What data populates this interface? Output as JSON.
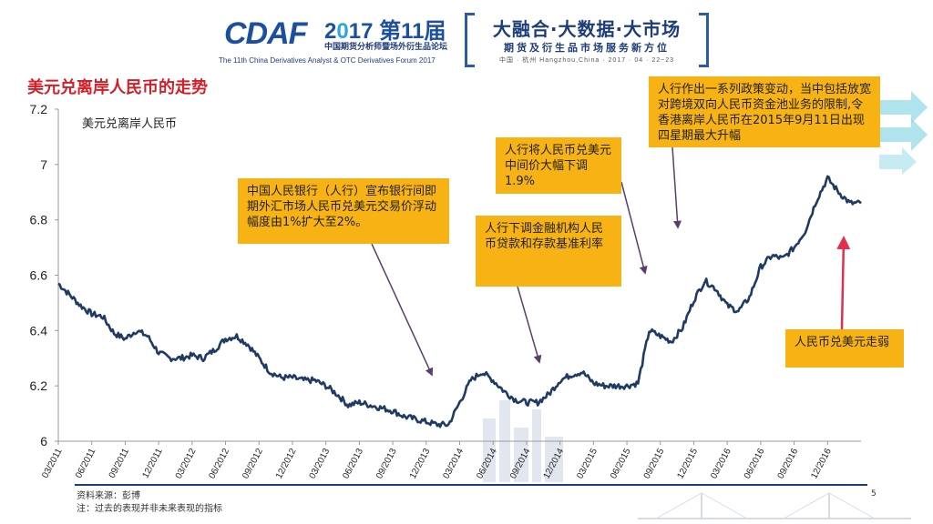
{
  "header": {
    "logo_text": "CDAF",
    "year_prefix": "2",
    "year_mid": "0",
    "year_suffix": "17 第11届",
    "logo_subtitle": "中国期货分析师暨场外衍生品论坛",
    "forum_name_en": "The 11th China Derivatives Analyst & OTC Derivatives Forum 2017",
    "slogan_main": "大融合·大数据·大市场",
    "slogan_sub": "期货及衍生品市场服务新方位",
    "slogan_location": "中国 · 杭州 Hangzhou,China · 2017 · 04 · 22~23"
  },
  "slide_title": "美元兑离岸人民币的走势",
  "callouts": [
    {
      "name": "callout-pboc-band",
      "text": "中国人民银行（人行）宣布银行间即期外汇市场人民币兑美元交易价浮动幅度由1%扩大至2%。"
    },
    {
      "name": "callout-rate-cut",
      "text": "人行下调金融机构人民币贷款和存款基准利率"
    },
    {
      "name": "callout-devaluation",
      "text": "人行将人民币兑美元中间价大幅下调1.9%"
    },
    {
      "name": "callout-policy-changes",
      "text": "人行作出一系列政策变动，当中包括放宽对跨境双向人民币资金池业务的限制,令香港离岸人民币在2015年9月11日出现四星期最大升幅"
    },
    {
      "name": "callout-rmb-weak",
      "text": "人民币兑美元走弱"
    }
  ],
  "footer": {
    "source": "资料来源：彭博",
    "note": "注：过去的表现并非未来表现的指标",
    "page": "5"
  },
  "colors": {
    "line": "#1f3b63",
    "title": "#d21f27",
    "callout": "#f7b213",
    "callout_arrow": "#5a3e6b",
    "weak_arrow": "#e0304e",
    "brand_blue": "#1d3d7a"
  },
  "chart_data": {
    "type": "line",
    "title": "",
    "xlabel": "",
    "ylabel": "",
    "ylim": [
      6.0,
      7.2
    ],
    "yticks": [
      "7.2",
      "7",
      "6.8",
      "6.6",
      "6.4",
      "6.2",
      "6"
    ],
    "ytick_values": [
      7.2,
      7.0,
      6.8,
      6.6,
      6.4,
      6.2,
      6.0
    ],
    "xticks": [
      "03/2011",
      "06/2011",
      "09/2011",
      "12/2011",
      "03/2012",
      "06/2012",
      "09/2012",
      "12/2012",
      "03/2013",
      "06/2013",
      "09/2013",
      "12/2013",
      "03/2014",
      "06/2014",
      "09/2014",
      "12/2014",
      "03/2015",
      "06/2015",
      "09/2015",
      "12/2015",
      "03/2016",
      "06/2016",
      "09/2016",
      "12/2016"
    ],
    "grid": false,
    "legend_position": "top-left",
    "series": [
      {
        "name": "美元兑离岸人民币",
        "x": [
          "2011-03",
          "2011-04",
          "2011-05",
          "2011-06",
          "2011-07",
          "2011-08",
          "2011-09",
          "2011-10",
          "2011-11",
          "2011-12",
          "2012-01",
          "2012-02",
          "2012-03",
          "2012-04",
          "2012-05",
          "2012-06",
          "2012-07",
          "2012-08",
          "2012-09",
          "2012-10",
          "2012-11",
          "2012-12",
          "2013-01",
          "2013-02",
          "2013-03",
          "2013-04",
          "2013-05",
          "2013-06",
          "2013-07",
          "2013-08",
          "2013-09",
          "2013-10",
          "2013-11",
          "2013-12",
          "2014-01",
          "2014-02",
          "2014-03",
          "2014-04",
          "2014-05",
          "2014-06",
          "2014-07",
          "2014-08",
          "2014-09",
          "2014-10",
          "2014-11",
          "2014-12",
          "2015-01",
          "2015-02",
          "2015-03",
          "2015-04",
          "2015-05",
          "2015-06",
          "2015-07",
          "2015-08",
          "2015-09",
          "2015-10",
          "2015-11",
          "2015-12",
          "2016-01",
          "2016-02",
          "2016-03",
          "2016-04",
          "2016-05",
          "2016-06",
          "2016-07",
          "2016-08",
          "2016-09",
          "2016-10",
          "2016-11",
          "2016-12",
          "2017-01",
          "2017-02",
          "2017-03"
        ],
        "values": [
          6.57,
          6.53,
          6.49,
          6.46,
          6.45,
          6.39,
          6.37,
          6.4,
          6.38,
          6.32,
          6.3,
          6.3,
          6.31,
          6.3,
          6.33,
          6.37,
          6.38,
          6.35,
          6.3,
          6.25,
          6.23,
          6.23,
          6.22,
          6.22,
          6.2,
          6.17,
          6.13,
          6.14,
          6.13,
          6.12,
          6.11,
          6.09,
          6.08,
          6.07,
          6.06,
          6.06,
          6.14,
          6.22,
          6.25,
          6.22,
          6.18,
          6.15,
          6.14,
          6.14,
          6.17,
          6.22,
          6.24,
          6.25,
          6.21,
          6.2,
          6.2,
          6.2,
          6.21,
          6.4,
          6.38,
          6.36,
          6.41,
          6.51,
          6.58,
          6.55,
          6.49,
          6.47,
          6.52,
          6.63,
          6.67,
          6.66,
          6.7,
          6.76,
          6.87,
          6.95,
          6.9,
          6.86,
          6.86
        ]
      }
    ]
  }
}
